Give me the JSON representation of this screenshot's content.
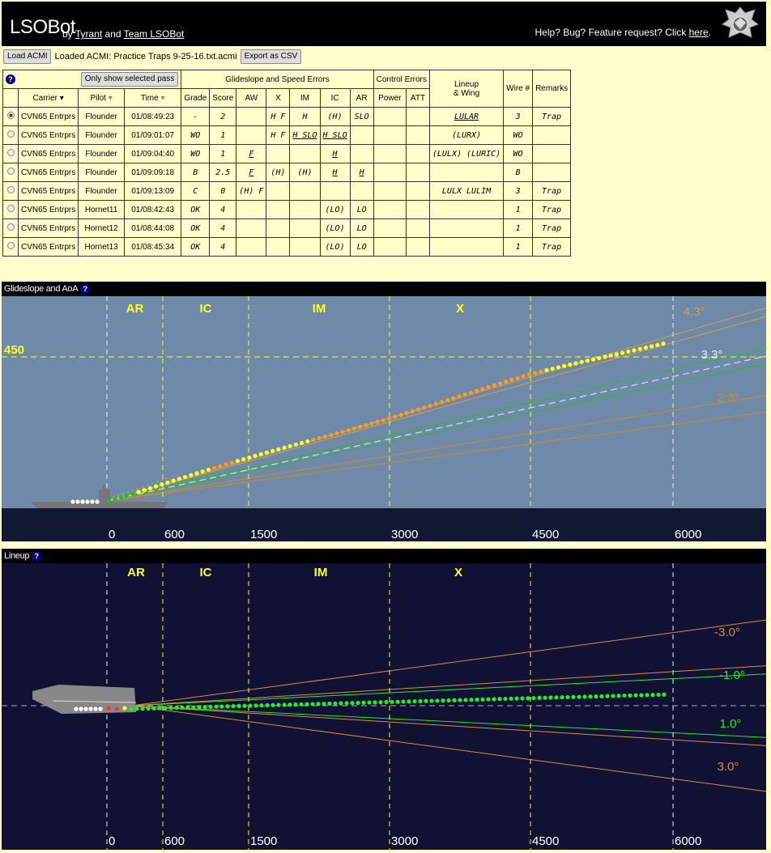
{
  "header": {
    "brand": "LSOBot",
    "by": "by",
    "author": "Tyrant",
    "and": "and",
    "team": "Team LSOBot",
    "help_prefix": "Help? Bug? Feature request? Click ",
    "help_link": "here",
    "help_suffix": "."
  },
  "toolbar": {
    "load_label": "Load ACMI",
    "loaded_text": "Loaded ACMI: Practice Traps 9-25-16.txt.acmi",
    "export_label": "Export as CSV"
  },
  "table": {
    "help": "?",
    "filter_label": "Only show selected pass",
    "group_glide": "Glideslope and Speed Errors",
    "group_control": "Control Errors",
    "group_lineup": "Lineup",
    "group_lineup2": "& Wing",
    "col_carrier": "Carrier ▾",
    "col_pilot": "Pilot",
    "col_time": "Time",
    "col_grade": "Grade",
    "col_score": "Score",
    "col_aw": "AW",
    "col_x": "X",
    "col_im": "IM",
    "col_ic": "IC",
    "col_ar": "AR",
    "col_power": "Power",
    "col_att": "ATT",
    "col_wire": "Wire #",
    "col_remarks": "Remarks",
    "rows": [
      {
        "carrier": "CVN65 Entrprs",
        "pilot": "Flounder",
        "time": "01/08:49:23",
        "grade": "-",
        "score": "2",
        "aw": "",
        "x": "H F",
        "im": "H",
        "ic": "(H)",
        "ar": "SLO",
        "power": "",
        "att": "",
        "lineup": "LULAR",
        "wire": "3",
        "remarks": "Trap",
        "selected": true,
        "u": {
          "lineup": 1
        }
      },
      {
        "carrier": "CVN65 Entrprs",
        "pilot": "Flounder",
        "time": "01/09:01:07",
        "grade": "WO",
        "score": "1",
        "aw": "",
        "x": "H F",
        "im": "H SLO",
        "ic": "H SLO",
        "ar": "",
        "power": "",
        "att": "",
        "lineup": "(LURX)",
        "wire": "WO",
        "remarks": "",
        "selected": false,
        "u": {
          "im": 1,
          "ic": 1
        }
      },
      {
        "carrier": "CVN65 Entrprs",
        "pilot": "Flounder",
        "time": "01/09:04:40",
        "grade": "WO",
        "score": "1",
        "aw": "F",
        "x": "",
        "im": "",
        "ic": "H",
        "ar": "",
        "power": "",
        "att": "",
        "lineup": "(LULX) (LURIC)",
        "wire": "WO",
        "remarks": "",
        "selected": false,
        "u": {
          "aw": 1,
          "ic": 1
        }
      },
      {
        "carrier": "CVN65 Entrprs",
        "pilot": "Flounder",
        "time": "01/09:09:18",
        "grade": "B",
        "score": "2.5",
        "aw": "F",
        "x": "(H)",
        "im": "(H)",
        "ic": "H",
        "ar": "H",
        "power": "",
        "att": "",
        "lineup": "",
        "wire": "B",
        "remarks": "",
        "selected": false,
        "u": {
          "aw": 1,
          "ic": 1,
          "ar": 1
        }
      },
      {
        "carrier": "CVN65 Entrprs",
        "pilot": "Flounder",
        "time": "01/09:13:09",
        "grade": "C",
        "score": "0",
        "aw": "(H) F",
        "x": "",
        "im": "",
        "ic": "",
        "ar": "",
        "power": "",
        "att": "",
        "lineup": "LULX LULIM",
        "wire": "3",
        "remarks": "Trap",
        "selected": false,
        "u": {}
      },
      {
        "carrier": "CVN65 Entrprs",
        "pilot": "Hornet11",
        "time": "01/08:42:43",
        "grade": "OK",
        "score": "4",
        "aw": "",
        "x": "",
        "im": "",
        "ic": "(LO)",
        "ar": "LO",
        "power": "",
        "att": "",
        "lineup": "",
        "wire": "1",
        "remarks": "Trap",
        "selected": false,
        "u": {}
      },
      {
        "carrier": "CVN65 Entrprs",
        "pilot": "Hornet12",
        "time": "01/08:44:08",
        "grade": "OK",
        "score": "4",
        "aw": "",
        "x": "",
        "im": "",
        "ic": "(LO)",
        "ar": "LO",
        "power": "",
        "att": "",
        "lineup": "",
        "wire": "1",
        "remarks": "Trap",
        "selected": false,
        "u": {}
      },
      {
        "carrier": "CVN65 Entrprs",
        "pilot": "Hornet13",
        "time": "01/08:45:34",
        "grade": "OK",
        "score": "4",
        "aw": "",
        "x": "",
        "im": "",
        "ic": "(LO)",
        "ar": "LO",
        "power": "",
        "att": "",
        "lineup": "",
        "wire": "1",
        "remarks": "Trap",
        "selected": false,
        "u": {}
      }
    ]
  },
  "glideslope": {
    "title": "Glideslope and AoA",
    "help": "?",
    "sections": [
      "AR",
      "IC",
      "IM",
      "X"
    ],
    "section_dist": [
      300,
      1050,
      2250,
      3750
    ],
    "xticks": [
      0,
      600,
      1500,
      3000,
      4500,
      6000
    ],
    "altitude_ref": 450,
    "angles": [
      4.3,
      3.3,
      2.3
    ],
    "colors": {
      "sky": "#6e8aa8",
      "sea": "#111833",
      "angle_hi": "#d4a040",
      "angle_mid": "#e0e0e0",
      "angle_lo": "#d08a20",
      "green": "#1fc21f",
      "yellow": "#ffff22",
      "orange": "#ff9922",
      "white": "#ffffff"
    }
  },
  "lineup": {
    "title": "Lineup",
    "help": "?",
    "sections": [
      "AR",
      "IC",
      "IM",
      "X"
    ],
    "xticks": [
      0,
      600,
      1500,
      3000,
      4500,
      6000
    ],
    "angles": [
      -3.0,
      -1.0,
      1.0,
      3.0
    ],
    "colors": {
      "bg": "#111133",
      "green": "#22ee22",
      "orange": "#d4903a",
      "white": "#ffffff"
    }
  }
}
